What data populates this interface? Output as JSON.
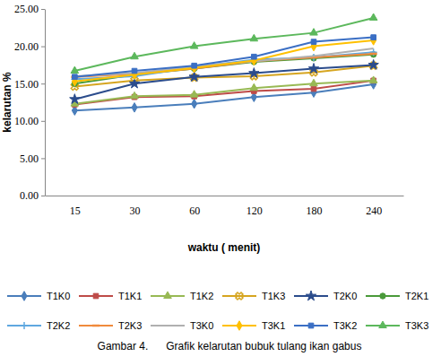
{
  "chart_data": {
    "type": "line",
    "title": "Gambar 4.      Grafik kelarutan bubuk tulang ikan gabus",
    "x_label": "waktu ( menit)",
    "y_label": "kelarutan %",
    "categories": [
      "15",
      "30",
      "60",
      "120",
      "180",
      "240"
    ],
    "ylim": [
      0,
      25
    ],
    "yticks": [
      {
        "value": 0,
        "label": "0.00"
      },
      {
        "value": 5,
        "label": "5.00"
      },
      {
        "value": 10,
        "label": "10.00"
      },
      {
        "value": 15,
        "label": "15.00"
      },
      {
        "value": 20,
        "label": "20.00"
      },
      {
        "value": 25,
        "label": "25.00"
      }
    ],
    "grid": false,
    "legend": "bottom",
    "series": [
      {
        "name": "T1K0",
        "color": "#4a7ebb",
        "marker": "diamond",
        "values": [
          11.4,
          11.8,
          12.3,
          13.2,
          13.8,
          14.9
        ]
      },
      {
        "name": "T1K1",
        "color": "#be4b48",
        "marker": "square",
        "values": [
          12.2,
          13.2,
          13.3,
          14.0,
          14.3,
          15.4
        ]
      },
      {
        "name": "T1K2",
        "color": "#98b954",
        "marker": "triangle",
        "values": [
          12.3,
          13.3,
          13.5,
          14.4,
          15.0,
          15.4
        ]
      },
      {
        "name": "T1K3",
        "color": "#d6a520",
        "marker": "x",
        "values": [
          14.6,
          15.4,
          15.8,
          16.0,
          16.5,
          17.4
        ]
      },
      {
        "name": "T2K0",
        "color": "#2b4c8c",
        "marker": "star",
        "values": [
          12.9,
          15.0,
          15.9,
          16.4,
          17.0,
          17.5
        ]
      },
      {
        "name": "T2K1",
        "color": "#4a9a3a",
        "marker": "circle",
        "values": [
          15.0,
          16.2,
          17.0,
          17.9,
          18.4,
          18.9
        ]
      },
      {
        "name": "T2K2",
        "color": "#5fa8e0",
        "marker": "plus",
        "values": [
          15.6,
          16.0,
          17.2,
          18.2,
          18.5,
          19.2
        ]
      },
      {
        "name": "T2K3",
        "color": "#f08a3c",
        "marker": "dash",
        "values": [
          15.9,
          16.3,
          17.0,
          18.0,
          18.5,
          19.0
        ]
      },
      {
        "name": "T3K0",
        "color": "#b0b0b0",
        "marker": "none",
        "values": [
          16.0,
          16.4,
          17.3,
          18.0,
          18.7,
          19.7
        ]
      },
      {
        "name": "T3K1",
        "color": "#ffc000",
        "marker": "diamond",
        "values": [
          15.3,
          16.2,
          17.1,
          18.1,
          20.0,
          20.8
        ]
      },
      {
        "name": "T3K2",
        "color": "#3b6fc4",
        "marker": "square",
        "values": [
          15.9,
          16.7,
          17.4,
          18.6,
          20.6,
          21.2
        ]
      },
      {
        "name": "T3K3",
        "color": "#5cb85c",
        "marker": "triangle",
        "values": [
          16.7,
          18.6,
          20.0,
          21.0,
          21.8,
          23.8
        ]
      }
    ]
  }
}
